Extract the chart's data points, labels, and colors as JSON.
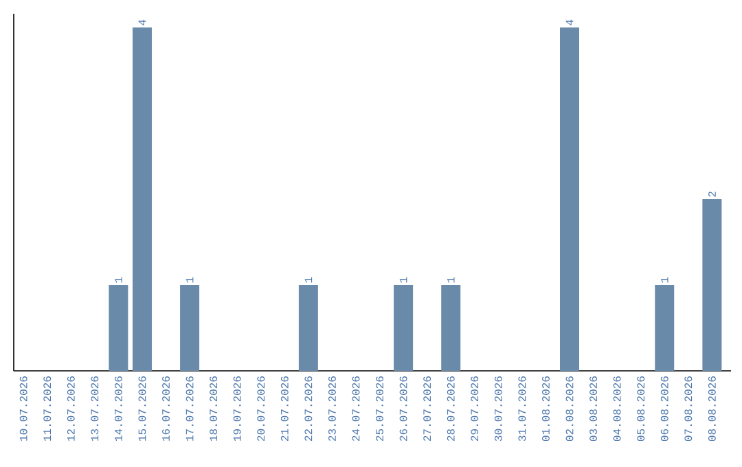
{
  "chart_data": {
    "type": "bar",
    "categories": [
      "10.07.2026",
      "11.07.2026",
      "12.07.2026",
      "13.07.2026",
      "14.07.2026",
      "15.07.2026",
      "16.07.2026",
      "17.07.2026",
      "18.07.2026",
      "19.07.2026",
      "20.07.2026",
      "21.07.2026",
      "22.07.2026",
      "23.07.2026",
      "24.07.2026",
      "25.07.2026",
      "26.07.2026",
      "27.07.2026",
      "28.07.2026",
      "29.07.2026",
      "30.07.2026",
      "31.07.2026",
      "01.08.2026",
      "02.08.2026",
      "03.08.2026",
      "04.08.2026",
      "05.08.2026",
      "06.08.2026",
      "07.08.2026",
      "08.08.2026"
    ],
    "values": [
      0,
      0,
      0,
      0,
      1,
      4,
      0,
      1,
      0,
      0,
      0,
      0,
      1,
      0,
      0,
      0,
      1,
      0,
      1,
      0,
      0,
      0,
      0,
      4,
      0,
      0,
      0,
      1,
      0,
      2
    ],
    "value_labels": [
      null,
      null,
      null,
      null,
      "1",
      "4",
      null,
      "1",
      null,
      null,
      null,
      null,
      "1",
      null,
      null,
      null,
      "1",
      null,
      "1",
      null,
      null,
      null,
      null,
      "4",
      null,
      null,
      null,
      "1",
      null,
      "2"
    ],
    "color": "#6a8aaa",
    "ylim": [
      0,
      4.16
    ],
    "tick_labels": "x"
  }
}
